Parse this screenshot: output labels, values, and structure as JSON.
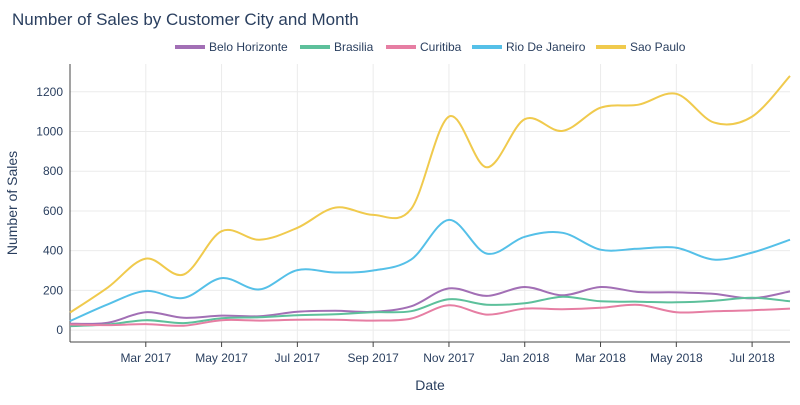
{
  "chart_data": {
    "type": "line",
    "title": "Number of Sales by Customer City and Month",
    "xlabel": "Date",
    "ylabel": "Number of Sales",
    "ylim": [
      -60,
      1340
    ],
    "yticks": [
      0,
      200,
      400,
      600,
      800,
      1000,
      1200
    ],
    "xticks": [
      {
        "label": "Mar 2017",
        "idx": 2
      },
      {
        "label": "May 2017",
        "idx": 4
      },
      {
        "label": "Jul 2017",
        "idx": 6
      },
      {
        "label": "Sep 2017",
        "idx": 8
      },
      {
        "label": "Nov 2017",
        "idx": 10
      },
      {
        "label": "Jan 2018",
        "idx": 12
      },
      {
        "label": "Mar 2018",
        "idx": 14
      },
      {
        "label": "May 2018",
        "idx": 16
      },
      {
        "label": "Jul 2018",
        "idx": 18
      }
    ],
    "x": [
      "Jan 2017",
      "Feb 2017",
      "Mar 2017",
      "Apr 2017",
      "May 2017",
      "Jun 2017",
      "Jul 2017",
      "Aug 2017",
      "Sep 2017",
      "Oct 2017",
      "Nov 2017",
      "Dec 2017",
      "Jan 2018",
      "Feb 2018",
      "Mar 2018",
      "Apr 2018",
      "May 2018",
      "Jun 2018",
      "Jul 2018",
      "Aug 2018"
    ],
    "series": [
      {
        "name": "Belo Horizonte",
        "color": "#a26fb5",
        "values": [
          32,
          37,
          90,
          62,
          73,
          70,
          92,
          97,
          92,
          120,
          210,
          172,
          217,
          175,
          217,
          192,
          190,
          182,
          160,
          195
        ]
      },
      {
        "name": "Brasilia",
        "color": "#5dc09b",
        "values": [
          20,
          28,
          50,
          35,
          60,
          65,
          75,
          80,
          90,
          95,
          155,
          128,
          135,
          168,
          145,
          143,
          140,
          148,
          163,
          145
        ]
      },
      {
        "name": "Curitiba",
        "color": "#e67ea3",
        "values": [
          28,
          25,
          30,
          22,
          50,
          48,
          52,
          52,
          48,
          58,
          125,
          78,
          108,
          105,
          112,
          127,
          90,
          95,
          100,
          108
        ]
      },
      {
        "name": "Rio De Janeiro",
        "color": "#55c0e8",
        "values": [
          45,
          130,
          197,
          162,
          262,
          205,
          302,
          290,
          300,
          355,
          555,
          385,
          470,
          490,
          405,
          410,
          415,
          355,
          390,
          455
        ]
      },
      {
        "name": "Sao Paulo",
        "color": "#f0ca4d",
        "values": [
          88,
          215,
          360,
          280,
          498,
          455,
          515,
          617,
          580,
          610,
          1075,
          820,
          1062,
          1003,
          1120,
          1135,
          1190,
          1045,
          1075,
          1280
        ]
      }
    ]
  }
}
